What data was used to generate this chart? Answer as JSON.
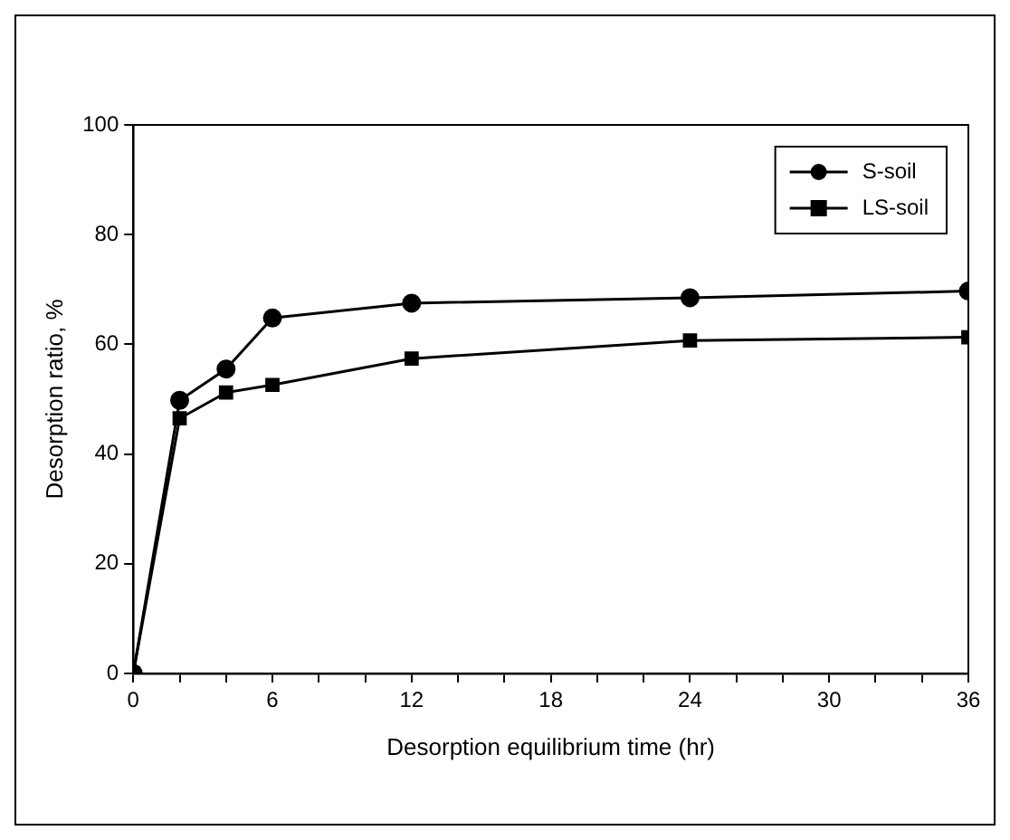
{
  "chart_data": {
    "type": "line",
    "xlabel": "Desorption equilibrium time (hr)",
    "ylabel": "Desorption ratio, %",
    "x": [
      0,
      2,
      4,
      6,
      12,
      24,
      36
    ],
    "series": [
      {
        "name": "S-soil",
        "color": "#000000",
        "marker": "circle",
        "values": [
          0,
          49.8,
          55.5,
          64.8,
          67.5,
          68.5,
          69.7
        ]
      },
      {
        "name": "LS-soil",
        "color": "#000000",
        "marker": "square",
        "values": [
          0,
          46.5,
          51.2,
          52.6,
          57.4,
          60.7,
          61.3
        ]
      }
    ],
    "xlim": [
      0,
      36
    ],
    "xticks": [
      0,
      {
        "value": 2,
        "label": null
      },
      {
        "value": 4,
        "label": null
      },
      6,
      {
        "value": 8,
        "label": null
      },
      {
        "value": 10,
        "label": null
      },
      12,
      {
        "value": 14,
        "label": null
      },
      {
        "value": 16,
        "label": null
      },
      18,
      {
        "value": 20,
        "label": null
      },
      {
        "value": 22,
        "label": null
      },
      24,
      {
        "value": 26,
        "label": null
      },
      {
        "value": 28,
        "label": null
      },
      30,
      {
        "value": 32,
        "label": null
      },
      {
        "value": 34,
        "label": null
      },
      36
    ],
    "ylim": [
      0,
      100
    ],
    "yticks": [
      0,
      20,
      40,
      60,
      80,
      100
    ],
    "grid": false,
    "legend": "top right",
    "line_style": "solid"
  }
}
